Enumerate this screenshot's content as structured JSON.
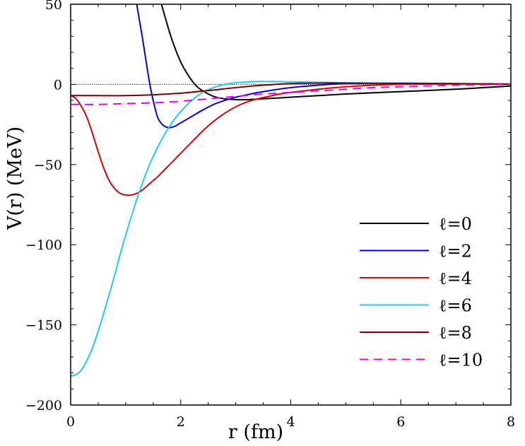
{
  "chart_data": {
    "type": "line",
    "title": "",
    "xlabel": "r (fm)",
    "ylabel": "V(r) (MeV)",
    "xlim": [
      0,
      8
    ],
    "ylim": [
      -200,
      50
    ],
    "x_major_ticks": [
      0,
      2,
      4,
      6,
      8
    ],
    "y_major_ticks": [
      50,
      0,
      -50,
      -100,
      -150,
      -200
    ],
    "x_tick_labels": [
      "0",
      "2",
      "4",
      "6",
      "8"
    ],
    "y_tick_labels": [
      "50",
      "0",
      "−50",
      "−100",
      "−150",
      "−200"
    ],
    "reference_line_y": 0,
    "legend_position": "lower-right",
    "series": [
      {
        "name": "ℓ=0",
        "color": "#000000",
        "dash": "solid",
        "x": [
          1.65,
          1.75,
          1.85,
          2.0,
          2.15,
          2.3,
          2.45,
          2.6,
          2.8,
          3.0,
          3.2,
          3.5,
          4.0,
          4.5,
          5.0,
          6.0,
          7.0,
          8.0
        ],
        "y": [
          50,
          38,
          27,
          14,
          5,
          -1.5,
          -5,
          -7.5,
          -9,
          -9.5,
          -9.5,
          -9,
          -8,
          -7,
          -6,
          -4.5,
          -3,
          -1
        ]
      },
      {
        "name": "ℓ=2",
        "color": "#0000dd",
        "dash": "solid",
        "x": [
          1.2,
          1.25,
          1.3,
          1.35,
          1.4,
          1.45,
          1.5,
          1.55,
          1.6,
          1.7,
          1.8,
          1.9,
          2.0,
          2.2,
          2.4,
          2.6,
          2.8,
          3.0,
          3.2,
          3.5,
          4.0,
          4.5,
          5.0,
          6.0,
          7.0,
          8.0
        ],
        "y": [
          50,
          40,
          30,
          19,
          8,
          -2,
          -10,
          -17,
          -22,
          -26,
          -27,
          -26,
          -24,
          -20,
          -16,
          -12.5,
          -10,
          -8,
          -6.5,
          -4.5,
          -2,
          -0.5,
          0.5,
          0.8,
          0.5,
          0.2
        ]
      },
      {
        "name": "ℓ=4",
        "color": "#dd0000",
        "dash": "solid",
        "x": [
          0.0,
          0.1,
          0.2,
          0.3,
          0.4,
          0.5,
          0.6,
          0.7,
          0.8,
          0.9,
          1.0,
          1.1,
          1.2,
          1.3,
          1.4,
          1.5,
          1.6,
          1.8,
          2.0,
          2.2,
          2.4,
          2.6,
          2.8,
          3.0,
          3.2,
          3.4,
          3.6,
          3.8,
          4.0,
          4.5,
          5.0,
          5.5,
          6.0,
          7.0,
          8.0
        ],
        "y": [
          -7,
          -9,
          -14,
          -21,
          -31,
          -42,
          -52,
          -60,
          -65,
          -68,
          -69,
          -69,
          -68,
          -66,
          -63,
          -60,
          -57,
          -50,
          -43,
          -36,
          -29,
          -23,
          -18,
          -14,
          -11,
          -9,
          -7.5,
          -6,
          -5,
          -3,
          -1.5,
          -0.5,
          0,
          0.3,
          0.2
        ]
      },
      {
        "name": "ℓ=6",
        "color": "#22c8f0",
        "dash": "solid",
        "x": [
          0.0,
          0.1,
          0.2,
          0.3,
          0.4,
          0.5,
          0.6,
          0.7,
          0.8,
          0.9,
          1.0,
          1.2,
          1.4,
          1.6,
          1.8,
          2.0,
          2.2,
          2.4,
          2.6,
          2.8,
          3.0,
          3.2,
          3.4,
          3.6,
          3.8,
          4.0,
          4.5,
          5.0,
          6.0,
          7.0,
          8.0
        ],
        "y": [
          -182,
          -181,
          -178,
          -172,
          -164,
          -154,
          -143,
          -131,
          -119,
          -106,
          -94,
          -72,
          -53,
          -38,
          -26,
          -17,
          -10,
          -5,
          -2,
          0,
          1,
          1.5,
          1.8,
          1.8,
          1.7,
          1.6,
          1.3,
          1,
          0.7,
          0.4,
          0.2
        ]
      },
      {
        "name": "ℓ=8",
        "color": "#7a0000",
        "dash": "solid",
        "x": [
          0.0,
          0.5,
          1.0,
          1.5,
          2.0,
          2.3,
          2.6,
          3.0,
          3.5,
          4.0,
          4.5,
          5.0,
          6.0,
          7.0,
          8.0
        ],
        "y": [
          -7,
          -7,
          -7,
          -6.5,
          -5.5,
          -4.5,
          -3.5,
          -2,
          -0.5,
          0.5,
          0.8,
          0.8,
          0.6,
          0.4,
          0.2
        ]
      },
      {
        "name": "ℓ=10",
        "color": "#ee00ee",
        "dash": "dashed",
        "x": [
          0.0,
          0.5,
          1.0,
          1.5,
          2.0,
          2.5,
          3.0,
          3.5,
          4.0,
          4.5,
          5.0,
          5.5,
          6.0,
          7.0,
          8.0
        ],
        "y": [
          -12.5,
          -12.5,
          -12,
          -11.5,
          -10.5,
          -9,
          -7.5,
          -6,
          -5,
          -4,
          -3,
          -2,
          -1.5,
          -0.5,
          0
        ]
      }
    ]
  }
}
